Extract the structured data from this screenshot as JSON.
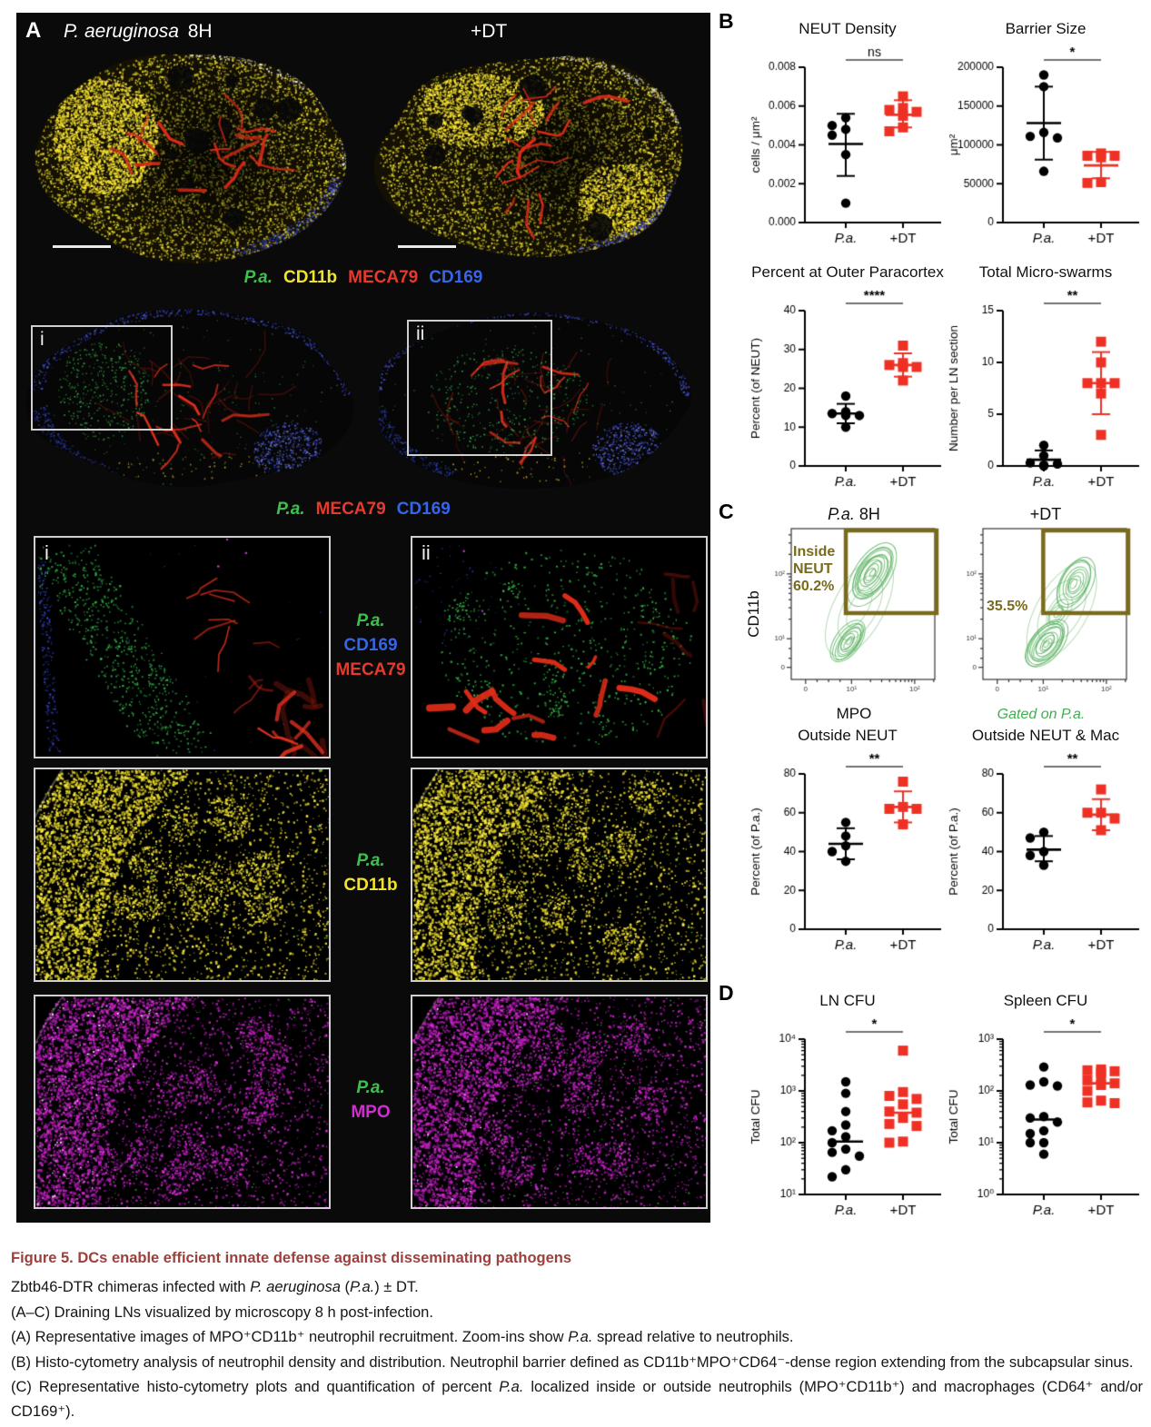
{
  "colors": {
    "green": "#3fbf4e",
    "yellow": "#f2e22e",
    "red": "#e8392e",
    "blue": "#3565e8",
    "magenta": "#d22cd2",
    "pa_marker": "#000000",
    "dt_marker": "#ee3124",
    "gate": "#7a6a1c",
    "contour": "#58b05e",
    "gated_text": "#3fae4c",
    "caption_title": "#9d403c"
  },
  "panel_a": {
    "label": "A",
    "image1_title": {
      "italic": "P. aeruginosa",
      "rest": " 8H"
    },
    "image2_title": "+DT",
    "legend_row1": [
      {
        "t": "P.a.",
        "c": "green",
        "i": true
      },
      {
        "t": "CD11b",
        "c": "yellow"
      },
      {
        "t": "MECA79",
        "c": "red"
      },
      {
        "t": "CD169",
        "c": "blue"
      }
    ],
    "legend_row2": [
      {
        "t": "P.a.",
        "c": "green",
        "i": true
      },
      {
        "t": "MECA79",
        "c": "red"
      },
      {
        "t": "CD169",
        "c": "blue"
      }
    ],
    "inset_i": "i",
    "inset_ii": "ii",
    "zoom_rows": [
      {
        "left_tag": "i",
        "right_tag": "ii",
        "labels": [
          {
            "t": "P.a.",
            "c": "green",
            "i": true
          },
          {
            "t": "CD169",
            "c": "blue"
          },
          {
            "t": "MECA79",
            "c": "red"
          }
        ]
      },
      {
        "labels": [
          {
            "t": "P.a.",
            "c": "green",
            "i": true
          },
          {
            "t": "CD11b",
            "c": "yellow"
          }
        ]
      },
      {
        "labels": [
          {
            "t": "P.a.",
            "c": "green",
            "i": true
          },
          {
            "t": "MPO",
            "c": "magenta"
          }
        ]
      }
    ]
  },
  "panel_b_label": "B",
  "panel_c_label": "C",
  "panel_d_label": "D",
  "flow": {
    "plot1": {
      "title": [
        {
          "t": "P.a.",
          "i": true
        },
        {
          "t": " 8H"
        }
      ],
      "gate_line1": "Inside",
      "gate_line2": "NEUT",
      "gate_percent": "60.2%"
    },
    "plot2": {
      "title": [
        {
          "t": "+DT"
        }
      ],
      "gate_percent": "35.5%"
    },
    "xlabel": "MPO",
    "ylabel": "CD11b",
    "footnote": "Gated on P.a.",
    "x_ticks": [
      "0",
      "10¹",
      "10²"
    ],
    "y_ticks": [
      "0",
      "10¹",
      "10²"
    ]
  },
  "chart_data": [
    {
      "id": "neut-density",
      "type": "scatter",
      "title": "NEUT Density",
      "ylabel": "cells / μm²",
      "scale": "linear",
      "ylim": [
        0,
        0.008
      ],
      "ytick_vals": [
        0,
        0.002,
        0.004,
        0.006,
        0.008
      ],
      "ytick_labels": [
        "0.000",
        "0.002",
        "0.004",
        "0.006",
        "0.008"
      ],
      "sig": "ns",
      "categories": [
        "P.a.",
        "+DT"
      ],
      "cat_italic": [
        true,
        false
      ],
      "series": [
        {
          "name": "P.a.",
          "marker": "circle",
          "color": "#000000",
          "values": [
            0.0054,
            0.005,
            0.0048,
            0.0045,
            0.0035,
            0.001
          ],
          "mean": 0.00405,
          "err": [
            0.0024,
            0.0056
          ]
        },
        {
          "name": "+DT",
          "marker": "square",
          "color": "#ee3124",
          "values": [
            0.0065,
            0.0059,
            0.0058,
            0.0057,
            0.0055,
            0.0049,
            0.0047
          ],
          "mean": 0.00555,
          "err": [
            0.0049,
            0.0063
          ]
        }
      ]
    },
    {
      "id": "barrier-size",
      "type": "scatter",
      "title": "Barrier Size",
      "ylabel": "μm²",
      "scale": "linear",
      "ylim": [
        0,
        200000
      ],
      "ytick_vals": [
        0,
        50000,
        100000,
        150000,
        200000
      ],
      "ytick_labels": [
        "0",
        "50000",
        "100000",
        "150000",
        "200000"
      ],
      "sig": "*",
      "categories": [
        "P.a.",
        "+DT"
      ],
      "cat_italic": [
        true,
        false
      ],
      "series": [
        {
          "name": "P.a.",
          "marker": "circle",
          "color": "#000000",
          "values": [
            190000,
            175000,
            116000,
            111000,
            109000,
            66000
          ],
          "mean": 128000,
          "err": [
            81000,
            175000
          ]
        },
        {
          "name": "+DT",
          "marker": "square",
          "color": "#ee3124",
          "values": [
            89000,
            86000,
            86000,
            84000,
            52000,
            51000
          ],
          "mean": 73500,
          "err": [
            57000,
            91000
          ]
        }
      ]
    },
    {
      "id": "percent-outer-paracortex",
      "type": "scatter",
      "title": "Percent at Outer Paracortex",
      "ylabel": "Percent (of NEUT)",
      "scale": "linear",
      "ylim": [
        0,
        40
      ],
      "ytick_vals": [
        0,
        10,
        20,
        30,
        40
      ],
      "ytick_labels": [
        "0",
        "10",
        "20",
        "30",
        "40"
      ],
      "sig": "****",
      "categories": [
        "P.a.",
        "+DT"
      ],
      "cat_italic": [
        true,
        false
      ],
      "series": [
        {
          "name": "P.a.",
          "marker": "circle",
          "color": "#000000",
          "values": [
            18,
            14,
            13.5,
            13,
            13,
            10
          ],
          "mean": 13.5,
          "err": [
            11,
            16
          ]
        },
        {
          "name": "+DT",
          "marker": "square",
          "color": "#ee3124",
          "values": [
            31,
            26.5,
            26,
            25.5,
            25.5,
            22
          ],
          "mean": 26,
          "err": [
            23,
            29
          ]
        }
      ]
    },
    {
      "id": "total-micro-swarms",
      "type": "scatter",
      "title": "Total Micro-swarms",
      "ylabel": "Number per LN section",
      "scale": "linear",
      "ylim": [
        0,
        15
      ],
      "ytick_vals": [
        0,
        5,
        10,
        15
      ],
      "ytick_labels": [
        "0",
        "5",
        "10",
        "15"
      ],
      "sig": "**",
      "categories": [
        "P.a.",
        "+DT"
      ],
      "cat_italic": [
        true,
        false
      ],
      "series": [
        {
          "name": "P.a.",
          "marker": "circle",
          "color": "#000000",
          "values": [
            2,
            1,
            0.3,
            0.2,
            0.1,
            0
          ],
          "mean": 0.6,
          "err": [
            0,
            1.5
          ]
        },
        {
          "name": "+DT",
          "marker": "square",
          "color": "#ee3124",
          "values": [
            12,
            10,
            8,
            8,
            8,
            7,
            3
          ],
          "mean": 8,
          "err": [
            5,
            11
          ]
        }
      ]
    },
    {
      "id": "outside-neut",
      "type": "scatter",
      "title": "Outside NEUT",
      "ylabel": "Percent (of P.a.)",
      "scale": "linear",
      "ylim": [
        0,
        80
      ],
      "ytick_vals": [
        0,
        20,
        40,
        60,
        80
      ],
      "ytick_labels": [
        "0",
        "20",
        "40",
        "60",
        "80"
      ],
      "sig": "**",
      "categories": [
        "P.a.",
        "+DT"
      ],
      "cat_italic": [
        true,
        false
      ],
      "series": [
        {
          "name": "P.a.",
          "marker": "circle",
          "color": "#000000",
          "values": [
            55,
            48,
            43,
            40,
            35
          ],
          "mean": 44,
          "err": [
            36,
            52
          ]
        },
        {
          "name": "+DT",
          "marker": "square",
          "color": "#ee3124",
          "values": [
            76,
            63,
            62,
            62,
            54
          ],
          "mean": 63,
          "err": [
            55,
            71
          ]
        }
      ]
    },
    {
      "id": "outside-neut-mac",
      "type": "scatter",
      "title": "Outside NEUT & Mac",
      "ylabel": "Percent (of P.a.)",
      "scale": "linear",
      "ylim": [
        0,
        80
      ],
      "ytick_vals": [
        0,
        20,
        40,
        60,
        80
      ],
      "ytick_labels": [
        "0",
        "20",
        "40",
        "60",
        "80"
      ],
      "sig": "**",
      "categories": [
        "P.a.",
        "+DT"
      ],
      "cat_italic": [
        true,
        false
      ],
      "series": [
        {
          "name": "P.a.",
          "marker": "circle",
          "color": "#000000",
          "values": [
            50,
            47,
            40,
            38,
            33
          ],
          "mean": 41,
          "err": [
            35,
            48
          ]
        },
        {
          "name": "+DT",
          "marker": "square",
          "color": "#ee3124",
          "values": [
            72,
            60,
            60,
            57,
            51
          ],
          "mean": 59,
          "err": [
            51,
            67
          ]
        }
      ]
    },
    {
      "id": "ln-cfu",
      "type": "scatter",
      "title": "LN CFU",
      "ylabel": "Total CFU",
      "scale": "log",
      "ylim": [
        10,
        10000
      ],
      "ytick_vals": [
        10,
        100,
        1000,
        10000
      ],
      "ytick_labels": [
        "10¹",
        "10²",
        "10³",
        "10⁴"
      ],
      "sig": "*",
      "categories": [
        "P.a.",
        "+DT"
      ],
      "cat_italic": [
        true,
        false
      ],
      "series": [
        {
          "name": "P.a.",
          "marker": "circle",
          "color": "#000000",
          "values": [
            1500,
            900,
            400,
            220,
            170,
            130,
            100,
            75,
            65,
            55,
            30,
            22
          ],
          "mean": 105
        },
        {
          "name": "+DT",
          "marker": "square",
          "color": "#ee3124",
          "values": [
            6000,
            950,
            800,
            700,
            550,
            400,
            380,
            300,
            230,
            210,
            105,
            100
          ],
          "mean": 380
        }
      ]
    },
    {
      "id": "spleen-cfu",
      "type": "scatter",
      "title": "Spleen CFU",
      "ylabel": "Total CFU",
      "scale": "log",
      "ylim": [
        1,
        1000
      ],
      "ytick_vals": [
        1,
        10,
        100,
        1000
      ],
      "ytick_labels": [
        "10⁰",
        "10¹",
        "10²",
        "10³"
      ],
      "sig": "*",
      "categories": [
        "P.a.",
        "+DT"
      ],
      "cat_italic": [
        true,
        false
      ],
      "series": [
        {
          "name": "P.a.",
          "marker": "circle",
          "color": "#000000",
          "values": [
            290,
            150,
            130,
            125,
            32,
            30,
            25,
            17,
            15,
            10,
            10,
            6
          ],
          "mean": 28
        },
        {
          "name": "+DT",
          "marker": "square",
          "color": "#ee3124",
          "values": [
            260,
            250,
            240,
            230,
            175,
            160,
            140,
            130,
            100,
            65,
            60,
            58
          ],
          "mean": 140
        }
      ]
    }
  ],
  "caption": {
    "title": "Figure 5.  DCs enable efficient innate defense against disseminating pathogens",
    "lines": [
      [
        {
          "t": "Zbtb46-DTR chimeras infected with "
        },
        {
          "t": "P. aeruginosa",
          "i": true
        },
        {
          "t": " ("
        },
        {
          "t": "P.a.",
          "i": true
        },
        {
          "t": ") ± DT."
        }
      ],
      [
        {
          "t": "(A–C) Draining LNs visualized by microscopy 8 h post-infection."
        }
      ],
      [
        {
          "t": "(A) Representative images of MPO⁺CD11b⁺ neutrophil recruitment. Zoom-ins show "
        },
        {
          "t": "P.a.",
          "i": true
        },
        {
          "t": " spread relative to neutrophils."
        }
      ],
      [
        {
          "t": "(B) Histo-cytometry analysis of neutrophil density and distribution. Neutrophil barrier defined as CD11b⁺MPO⁺CD64⁻-dense region extending from the subcapsular sinus."
        }
      ],
      [
        {
          "t": "(C) Representative histo-cytometry plots and quantification of percent "
        },
        {
          "t": "P.a.",
          "i": true
        },
        {
          "t": " localized inside or outside neutrophils (MPO⁺CD11b⁺) and macrophages (CD64⁺ and/or CD169⁺)."
        }
      ]
    ]
  }
}
